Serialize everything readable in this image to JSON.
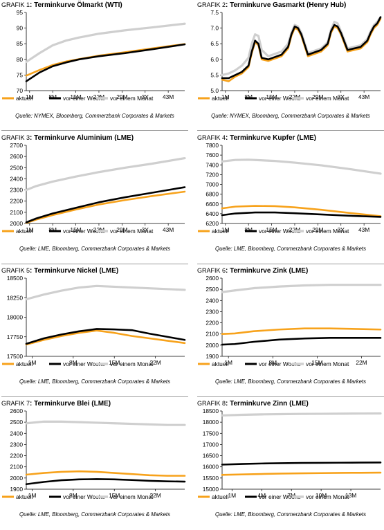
{
  "legend": {
    "aktuell": "aktuell",
    "woche": "vor einer Woche",
    "monat": "vor einem Monat"
  },
  "colors": {
    "aktuell": "#f7a21b",
    "woche": "#000000",
    "monat": "#cfcfcf"
  },
  "chart_data": [
    {
      "type": "line",
      "label": "GRAFIK 1",
      "title": "Terminkurve Ölmarkt (WTI)",
      "source": "Quelle: NYMEX, Bloomberg, Commerzbank Corporates & Markets",
      "ylim": [
        70,
        95
      ],
      "yticks": [
        70,
        75,
        80,
        85,
        90,
        95
      ],
      "xlim": [
        0,
        48
      ],
      "xticks": [
        {
          "x": 1,
          "label": "1M"
        },
        {
          "x": 8,
          "label": "8M"
        },
        {
          "x": 15,
          "label": "15M"
        },
        {
          "x": 22,
          "label": "22M"
        },
        {
          "x": 29,
          "label": "29M"
        },
        {
          "x": 36,
          "label": "3Y"
        },
        {
          "x": 43,
          "label": "43M"
        }
      ],
      "series": [
        {
          "name": "aktuell",
          "x": [
            0,
            4,
            8,
            12,
            16,
            22,
            30,
            38,
            48
          ],
          "values": [
            74.8,
            76.6,
            78.2,
            79.3,
            80.1,
            81.2,
            82.3,
            83.5,
            84.9
          ]
        },
        {
          "name": "vor einer Woche",
          "x": [
            0,
            4,
            8,
            12,
            16,
            22,
            30,
            38,
            48
          ],
          "values": [
            73.0,
            75.8,
            77.8,
            79.0,
            80.0,
            81.0,
            82.0,
            83.2,
            84.8
          ]
        },
        {
          "name": "vor einem Monat",
          "x": [
            0,
            4,
            8,
            12,
            16,
            22,
            30,
            38,
            48
          ],
          "values": [
            79.2,
            82.0,
            84.5,
            86.0,
            87.0,
            88.2,
            89.3,
            90.2,
            91.4
          ]
        }
      ]
    },
    {
      "type": "line",
      "label": "GRAFIK 2",
      "title": "Terminkurve Gasmarkt (Henry Hub)",
      "source": "Quelle: NYMEX, Bloomberg, Commerzbank Corporates & Markets",
      "ylim": [
        5.0,
        7.5
      ],
      "yticks": [
        5.0,
        5.5,
        6.0,
        6.5,
        7.0,
        7.5
      ],
      "yformat": 1,
      "xlim": [
        0,
        48
      ],
      "xticks": [
        {
          "x": 1,
          "label": "1M"
        },
        {
          "x": 8,
          "label": "8M"
        },
        {
          "x": 15,
          "label": "15M"
        },
        {
          "x": 22,
          "label": "22M"
        },
        {
          "x": 29,
          "label": "29M"
        },
        {
          "x": 36,
          "label": "3Y"
        },
        {
          "x": 43,
          "label": "43M"
        }
      ],
      "series": [
        {
          "name": "aktuell",
          "x": [
            0,
            2,
            4,
            6,
            8,
            9,
            10,
            11,
            12,
            14,
            18,
            20,
            21,
            22,
            23,
            24,
            26,
            30,
            32,
            33,
            34,
            35,
            36,
            38,
            42,
            44,
            45,
            46,
            47,
            48
          ],
          "values": [
            5.35,
            5.3,
            5.45,
            5.55,
            5.75,
            6.2,
            6.55,
            6.45,
            6.0,
            5.95,
            6.1,
            6.35,
            6.75,
            7.0,
            6.95,
            6.75,
            6.1,
            6.25,
            6.45,
            6.85,
            7.05,
            7.0,
            6.8,
            6.25,
            6.35,
            6.55,
            6.8,
            7.0,
            7.1,
            7.3
          ]
        },
        {
          "name": "vor einer Woche",
          "x": [
            0,
            2,
            4,
            6,
            8,
            9,
            10,
            11,
            12,
            14,
            18,
            20,
            21,
            22,
            23,
            24,
            26,
            30,
            32,
            33,
            34,
            35,
            36,
            38,
            42,
            44,
            45,
            46,
            47,
            48
          ],
          "values": [
            5.4,
            5.4,
            5.5,
            5.6,
            5.8,
            6.25,
            6.6,
            6.5,
            6.05,
            6.0,
            6.15,
            6.4,
            6.8,
            7.05,
            7.0,
            6.8,
            6.15,
            6.3,
            6.5,
            6.9,
            7.1,
            7.05,
            6.85,
            6.3,
            6.4,
            6.6,
            6.85,
            7.05,
            7.15,
            7.35
          ]
        },
        {
          "name": "vor einem Monat",
          "x": [
            0,
            2,
            4,
            6,
            8,
            9,
            10,
            11,
            12,
            14,
            18,
            20,
            21,
            22,
            23,
            24,
            26,
            30,
            32,
            33,
            34,
            35,
            36,
            38,
            42,
            44,
            45,
            46,
            47,
            48
          ],
          "values": [
            5.5,
            5.55,
            5.65,
            5.8,
            6.05,
            6.5,
            6.8,
            6.75,
            6.3,
            6.1,
            6.25,
            6.5,
            6.85,
            7.1,
            7.05,
            6.85,
            6.2,
            6.35,
            6.55,
            6.95,
            7.2,
            7.15,
            6.9,
            6.35,
            6.45,
            6.65,
            6.9,
            7.1,
            7.2,
            7.35
          ]
        }
      ]
    },
    {
      "type": "line",
      "label": "GRAFIK 3",
      "title": "Terminkurve Aluminium (LME)",
      "source": "Quelle: LME, Bloomberg, Commerzbank Corporates & Markets",
      "ylim": [
        2000,
        2700
      ],
      "yticks": [
        2000,
        2100,
        2200,
        2300,
        2400,
        2500,
        2600,
        2700
      ],
      "xlim": [
        0,
        48
      ],
      "xticks": [
        {
          "x": 1,
          "label": "1M"
        },
        {
          "x": 8,
          "label": "8M"
        },
        {
          "x": 15,
          "label": "15M"
        },
        {
          "x": 22,
          "label": "22M"
        },
        {
          "x": 29,
          "label": "29M"
        },
        {
          "x": 36,
          "label": "3Y"
        },
        {
          "x": 43,
          "label": "43M"
        }
      ],
      "series": [
        {
          "name": "aktuell",
          "x": [
            0,
            3,
            8,
            15,
            22,
            30,
            38,
            48
          ],
          "values": [
            2005,
            2035,
            2075,
            2125,
            2170,
            2210,
            2245,
            2285
          ]
        },
        {
          "name": "vor einer Woche",
          "x": [
            0,
            3,
            8,
            15,
            22,
            30,
            38,
            48
          ],
          "values": [
            2010,
            2045,
            2090,
            2140,
            2190,
            2235,
            2275,
            2325
          ]
        },
        {
          "name": "vor einem Monat",
          "x": [
            0,
            3,
            8,
            15,
            22,
            30,
            38,
            48
          ],
          "values": [
            2300,
            2335,
            2375,
            2420,
            2460,
            2500,
            2535,
            2585
          ]
        }
      ]
    },
    {
      "type": "line",
      "label": "GRAFIK 4",
      "title": "Terminkurve Kupfer (LME)",
      "source": "Quelle: LME, Bloomberg, Commerzbank Corporates & Markets",
      "ylim": [
        6200,
        7800
      ],
      "yticks": [
        6200,
        6400,
        6600,
        6800,
        7000,
        7200,
        7400,
        7600,
        7800
      ],
      "xlim": [
        0,
        48
      ],
      "xticks": [
        {
          "x": 1,
          "label": "1M"
        },
        {
          "x": 8,
          "label": "8M"
        },
        {
          "x": 15,
          "label": "15M"
        },
        {
          "x": 22,
          "label": "22M"
        },
        {
          "x": 29,
          "label": "29M"
        },
        {
          "x": 36,
          "label": "3Y"
        },
        {
          "x": 43,
          "label": "43M"
        }
      ],
      "series": [
        {
          "name": "aktuell",
          "x": [
            0,
            4,
            10,
            16,
            22,
            30,
            38,
            48
          ],
          "values": [
            6510,
            6545,
            6560,
            6555,
            6530,
            6480,
            6420,
            6350
          ]
        },
        {
          "name": "vor einer Woche",
          "x": [
            0,
            4,
            10,
            16,
            22,
            30,
            38,
            48
          ],
          "values": [
            6370,
            6405,
            6425,
            6425,
            6410,
            6385,
            6360,
            6335
          ]
        },
        {
          "name": "vor einem Monat",
          "x": [
            0,
            4,
            8,
            16,
            22,
            30,
            38,
            48
          ],
          "values": [
            7470,
            7500,
            7505,
            7480,
            7445,
            7390,
            7320,
            7220
          ]
        }
      ]
    },
    {
      "type": "line",
      "label": "GRAFIK 5",
      "title": "Terminkurve Nickel (LME)",
      "source": "Quelle: LME, Bloomberg, Commerzbank Corporates & Markets",
      "ylim": [
        17500,
        18500
      ],
      "yticks": [
        17500,
        17750,
        18000,
        18250,
        18500
      ],
      "xlim": [
        0,
        27
      ],
      "xticks": [
        {
          "x": 1,
          "label": "1M"
        },
        {
          "x": 8,
          "label": "8M"
        },
        {
          "x": 15,
          "label": "15M"
        },
        {
          "x": 22,
          "label": "22M"
        }
      ],
      "series": [
        {
          "name": "aktuell",
          "x": [
            0,
            3,
            6,
            9,
            12,
            15,
            18,
            21,
            24,
            27
          ],
          "values": [
            17650,
            17710,
            17760,
            17800,
            17830,
            17800,
            17760,
            17730,
            17700,
            17670
          ]
        },
        {
          "name": "vor einer Woche",
          "x": [
            0,
            3,
            6,
            9,
            12,
            15,
            18,
            21,
            24,
            27
          ],
          "values": [
            17660,
            17730,
            17780,
            17820,
            17850,
            17845,
            17835,
            17790,
            17750,
            17710
          ]
        },
        {
          "name": "vor einem Monat",
          "x": [
            0,
            3,
            6,
            9,
            12,
            15,
            18,
            21,
            24,
            27
          ],
          "values": [
            18230,
            18290,
            18340,
            18380,
            18400,
            18390,
            18380,
            18370,
            18360,
            18350
          ]
        }
      ]
    },
    {
      "type": "line",
      "label": "GRAFIK 6",
      "title": "Terminkurve Zink (LME)",
      "source": "Quelle: LME, Bloomberg, Commerzbank Corporates & Markets",
      "ylim": [
        1900,
        2600
      ],
      "yticks": [
        1900,
        2000,
        2100,
        2200,
        2300,
        2400,
        2500,
        2600
      ],
      "xlim": [
        0,
        25
      ],
      "xticks": [
        {
          "x": 1,
          "label": "1M"
        },
        {
          "x": 8,
          "label": "8M"
        },
        {
          "x": 15,
          "label": "15M"
        },
        {
          "x": 22,
          "label": "22M"
        }
      ],
      "series": [
        {
          "name": "aktuell",
          "x": [
            0,
            2,
            5,
            9,
            13,
            17,
            21,
            25
          ],
          "values": [
            2100,
            2105,
            2125,
            2140,
            2150,
            2150,
            2145,
            2140
          ]
        },
        {
          "name": "vor einer Woche",
          "x": [
            0,
            2,
            5,
            9,
            13,
            17,
            21,
            25
          ],
          "values": [
            2005,
            2010,
            2030,
            2050,
            2060,
            2065,
            2065,
            2065
          ]
        },
        {
          "name": "vor einem Monat",
          "x": [
            0,
            2,
            5,
            9,
            13,
            17,
            21,
            25
          ],
          "values": [
            2475,
            2490,
            2510,
            2525,
            2535,
            2540,
            2540,
            2540
          ]
        }
      ]
    },
    {
      "type": "line",
      "label": "GRAFIK 7",
      "title": "Terminkurve Blei (LME)",
      "source": "Quelle: LME, Bloomberg, Commerzbank Corporates & Markets",
      "ylim": [
        1900,
        2600
      ],
      "yticks": [
        1900,
        2000,
        2100,
        2200,
        2300,
        2400,
        2500,
        2600
      ],
      "xlim": [
        0,
        27
      ],
      "xticks": [
        {
          "x": 1,
          "label": "1M"
        },
        {
          "x": 8,
          "label": "8M"
        },
        {
          "x": 15,
          "label": "15M"
        },
        {
          "x": 22,
          "label": "22M"
        }
      ],
      "series": [
        {
          "name": "aktuell",
          "x": [
            0,
            3,
            6,
            9,
            12,
            15,
            18,
            21,
            24,
            27
          ],
          "values": [
            2030,
            2045,
            2055,
            2060,
            2055,
            2045,
            2035,
            2025,
            2020,
            2020
          ]
        },
        {
          "name": "vor einer Woche",
          "x": [
            0,
            3,
            6,
            9,
            12,
            15,
            18,
            21,
            24,
            27
          ],
          "values": [
            1945,
            1965,
            1980,
            1988,
            1990,
            1988,
            1982,
            1975,
            1970,
            1968
          ]
        },
        {
          "name": "vor einem Monat",
          "x": [
            0,
            3,
            6,
            9,
            12,
            15,
            18,
            21,
            24,
            27
          ],
          "values": [
            2490,
            2505,
            2505,
            2500,
            2495,
            2490,
            2485,
            2480,
            2475,
            2475
          ]
        }
      ]
    },
    {
      "type": "line",
      "label": "GRAFIK 8",
      "title": "Terminkurve Zinn (LME)",
      "source": "Quelle: LME, Bloomberg, Commerzbank Corporates & Markets",
      "ylim": [
        15000,
        18500
      ],
      "yticks": [
        15000,
        15500,
        16000,
        16500,
        17000,
        17500,
        18000,
        18500
      ],
      "xlim": [
        0,
        16
      ],
      "xticks": [
        {
          "x": 1,
          "label": "1M"
        },
        {
          "x": 4,
          "label": "4M"
        },
        {
          "x": 7,
          "label": "7M"
        },
        {
          "x": 10,
          "label": "10M"
        },
        {
          "x": 13,
          "label": "13M"
        }
      ],
      "series": [
        {
          "name": "aktuell",
          "x": [
            0,
            2,
            4,
            6,
            8,
            10,
            12,
            14,
            16
          ],
          "values": [
            15640,
            15660,
            15680,
            15700,
            15710,
            15720,
            15730,
            15735,
            15740
          ]
        },
        {
          "name": "vor einer Woche",
          "x": [
            0,
            2,
            4,
            6,
            8,
            10,
            12,
            14,
            16
          ],
          "values": [
            16100,
            16130,
            16150,
            16165,
            16175,
            16180,
            16185,
            16190,
            16195
          ]
        },
        {
          "name": "vor einem Monat",
          "x": [
            0,
            2,
            4,
            6,
            8,
            10,
            12,
            14,
            16
          ],
          "values": [
            18300,
            18330,
            18350,
            18360,
            18370,
            18375,
            18380,
            18385,
            18390
          ]
        }
      ]
    }
  ]
}
